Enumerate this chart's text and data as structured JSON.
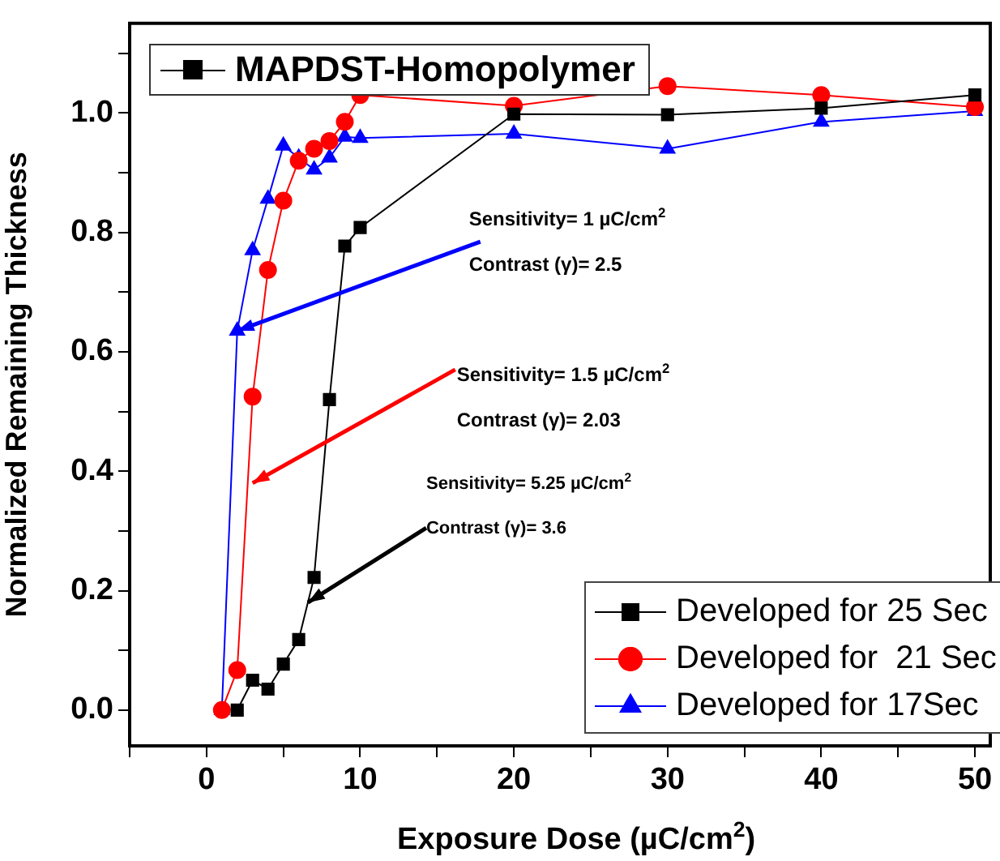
{
  "chart_data": {
    "type": "line",
    "title": "MAPDST-Homopolymer",
    "xlabel": "Exposure Dose (µC/cm$^{2}$)",
    "ylabel": "Normalized Remaining Thickness",
    "xlim": [
      -5,
      51
    ],
    "xticks": [
      {
        "value": -5,
        "label": null
      },
      0,
      {
        "value": 5,
        "label": null
      },
      10,
      {
        "value": 15,
        "label": null
      },
      20,
      {
        "value": 25,
        "label": null
      },
      30,
      {
        "value": 35,
        "label": null
      },
      40,
      {
        "value": 45,
        "label": null
      },
      50
    ],
    "ylim": [
      -0.06,
      1.15
    ],
    "yticks": [
      {
        "value": 0,
        "label": "0.0"
      },
      {
        "value": 0.1,
        "label": null
      },
      {
        "value": 0.2,
        "label": "0.2"
      },
      {
        "value": 0.3,
        "label": null
      },
      {
        "value": 0.4,
        "label": "0.4"
      },
      {
        "value": 0.5,
        "label": null
      },
      {
        "value": 0.6,
        "label": "0.6"
      },
      {
        "value": 0.7,
        "label": null
      },
      {
        "value": 0.8,
        "label": "0.8"
      },
      {
        "value": 0.9,
        "label": null
      },
      {
        "value": 1.0,
        "label": "1.0"
      },
      {
        "value": 1.1,
        "label": null
      }
    ],
    "grid": false,
    "legend": "bottom right",
    "series": [
      {
        "name": "Developed for 25 Sec",
        "color": "#000000",
        "marker": "square",
        "x": [
          2,
          3,
          4,
          5,
          6,
          7,
          8,
          9,
          10,
          20,
          30,
          40,
          50
        ],
        "values": [
          0.0,
          0.05,
          0.035,
          0.077,
          0.118,
          0.222,
          0.52,
          0.777,
          0.808,
          0.998,
          0.997,
          1.008,
          1.03
        ]
      },
      {
        "name": "Developed for  21 Sec",
        "color": "#ff0000",
        "marker": "circle",
        "x": [
          1,
          2,
          3,
          4,
          5,
          6,
          7,
          8,
          9,
          10,
          20,
          30,
          40,
          50
        ],
        "values": [
          0.0,
          0.067,
          0.525,
          0.737,
          0.853,
          0.92,
          0.94,
          0.953,
          0.985,
          1.03,
          1.012,
          1.045,
          1.03,
          1.01
        ]
      },
      {
        "name": "Developed for 17Sec",
        "color": "#0000ff",
        "marker": "triangle",
        "x": [
          1,
          2,
          3,
          4,
          5,
          6,
          7,
          8,
          9,
          10,
          20,
          30,
          40,
          50
        ],
        "values": [
          0.0,
          0.635,
          0.77,
          0.856,
          0.945,
          0.925,
          0.905,
          0.925,
          0.96,
          0.958,
          0.965,
          0.94,
          0.985,
          1.003
        ]
      }
    ],
    "annotations": [
      {
        "text": "Sensitivity= 1 µC/cm$^{2}$",
        "x": 2,
        "y": 0.635
      },
      "Contrast (γ)= 2.5",
      {
        "text": "Sensitivity= 1.5 µC/cm$^{2}$",
        "x": 3,
        "y": 0.38
      },
      "Contrast (γ)= 2.03",
      "Sensitivity= 5.25 µC/cm$^{2}$",
      {
        "text": "Contrast (γ)= 3.6",
        "x": 6.6,
        "y": 0.18
      }
    ]
  }
}
